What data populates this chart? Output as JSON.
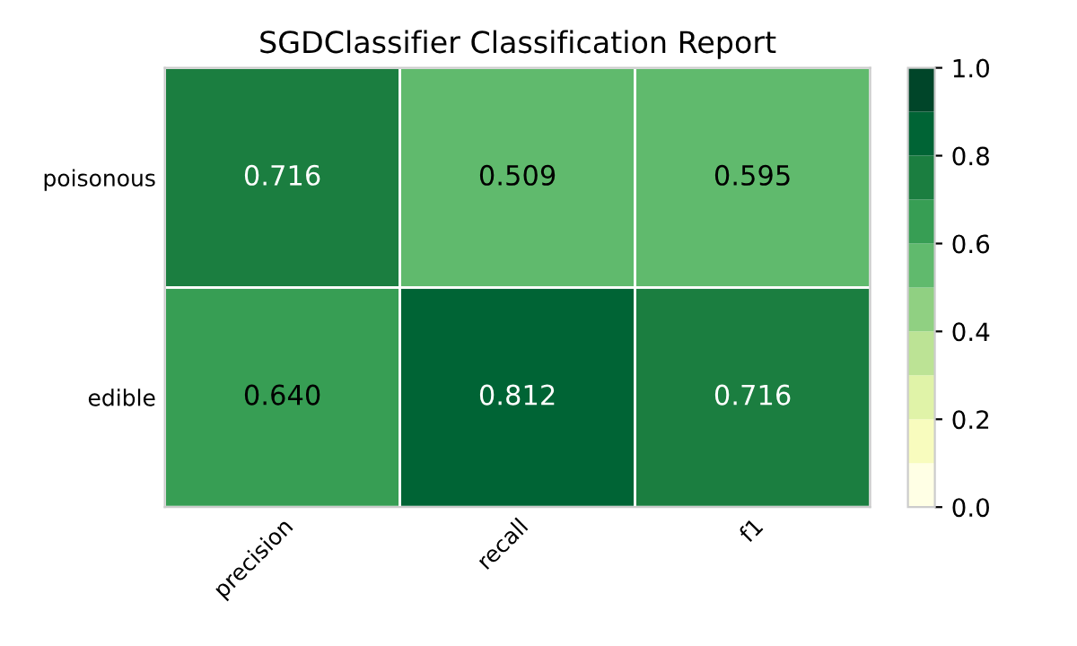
{
  "chart_data": {
    "type": "heatmap",
    "title": "SGDClassifier Classification Report",
    "categories": [
      "precision",
      "recall",
      "f1"
    ],
    "y_categories": [
      "poisonous",
      "edible"
    ],
    "cells": [
      [
        0.716,
        0.509,
        0.595
      ],
      [
        0.64,
        0.812,
        0.716
      ]
    ],
    "cell_labels": [
      [
        "0.716",
        "0.509",
        "0.595"
      ],
      [
        "0.640",
        "0.812",
        "0.716"
      ]
    ],
    "clim": [
      0.0,
      1.0
    ],
    "cticks": [
      {
        "value": 0.0,
        "label": "0.0"
      },
      {
        "value": 0.2,
        "label": "0.2"
      },
      {
        "value": 0.4,
        "label": "0.4"
      },
      {
        "value": 0.6,
        "label": "0.6"
      },
      {
        "value": 0.8,
        "label": "0.8"
      },
      {
        "value": 1.0,
        "label": "1.0"
      }
    ]
  }
}
